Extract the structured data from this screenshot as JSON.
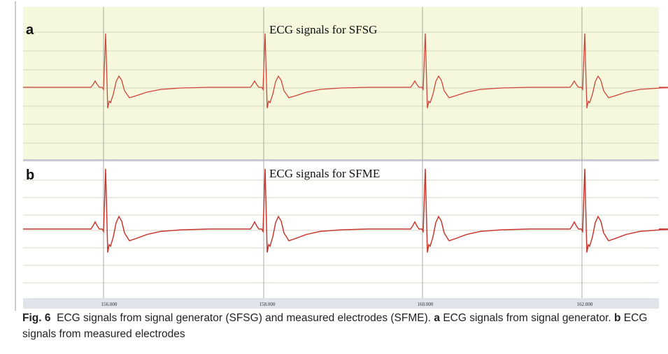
{
  "figure": {
    "panels": [
      {
        "letter": "a",
        "title": "ECG signals for SFSG"
      },
      {
        "letter": "b",
        "title": "ECG signals for SFME"
      }
    ],
    "axis_labels": [
      "156.000",
      "158.000",
      "160.000",
      "162.000"
    ],
    "caption": {
      "number": "Fig. 6",
      "text": "ECG signals from signal generator (SFSG) and measured electrodes (SFME).",
      "part_a_letter": "a",
      "part_a_text": "ECG signals from signal generator.",
      "part_b_letter": "b",
      "part_b_text": "ECG signals from measured electrodes"
    }
  }
}
